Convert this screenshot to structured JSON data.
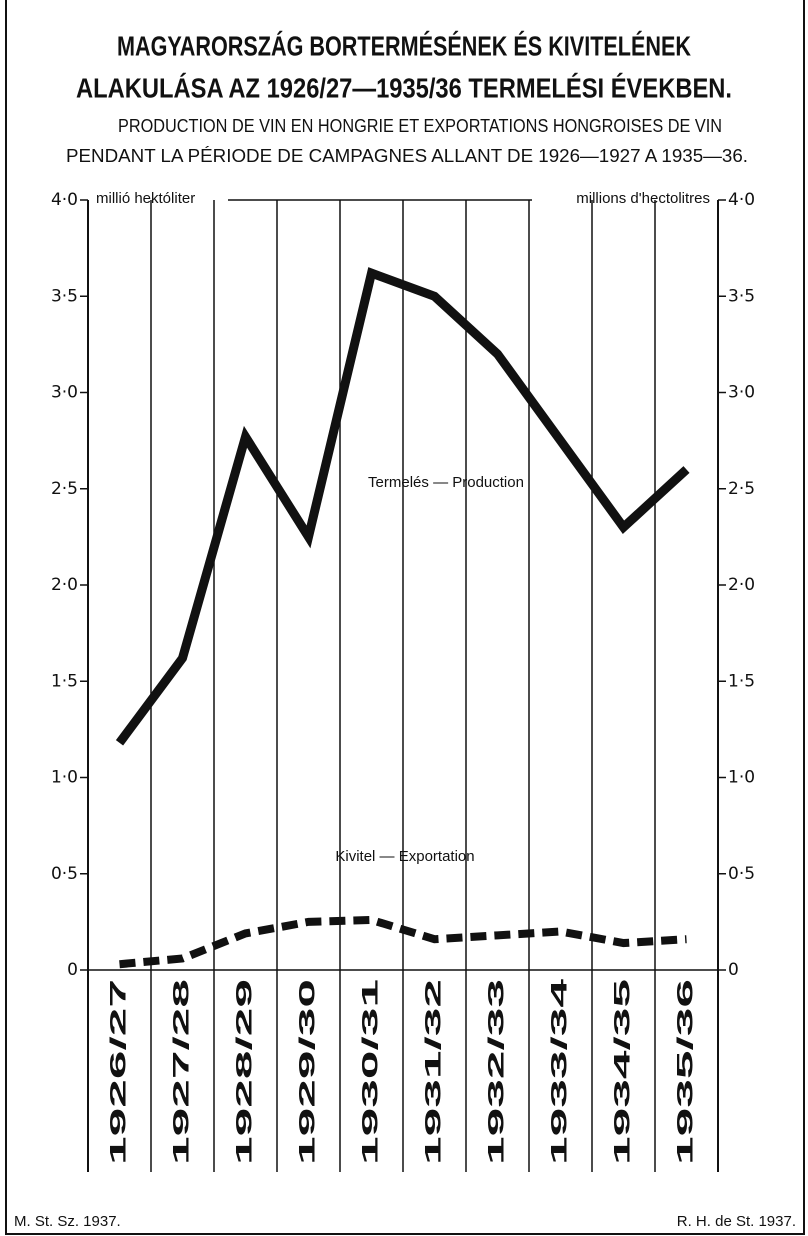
{
  "chart_data": {
    "type": "line",
    "title": [
      "MAGYARORSZÁG BORTERMÉSÉNEK ÉS KIVITELÉNEK",
      "ALAKULÁSA AZ 1926/27—1935/36 TERMELÉSI ÉVEKBEN."
    ],
    "subtitle": [
      "PRODUCTION DE VIN EN HONGRIE ET EXPORTATIONS HONGROISES DE VIN",
      "PENDANT LA PÉRIODE DE CAMPAGNES ALLANT DE 1926—1927 A 1935—36."
    ],
    "y_label": "millió hektóliter",
    "y2_label": "millions d'hectolitres",
    "categories": [
      "1926/27",
      "1927/28",
      "1928/29",
      "1929/30",
      "1930/31",
      "1931/32",
      "1932/33",
      "1933/34",
      "1934/35",
      "1935/36"
    ],
    "series": [
      {
        "name": "Termelés — Production",
        "color": "#111111",
        "style": "solid",
        "values": [
          1.18,
          1.62,
          2.77,
          2.25,
          3.62,
          3.5,
          3.2,
          2.75,
          2.3,
          2.6
        ]
      },
      {
        "name": "Kivitel — Exportation",
        "color": "#111111",
        "style": "dashed",
        "values": [
          0.03,
          0.06,
          0.19,
          0.25,
          0.26,
          0.16,
          0.18,
          0.2,
          0.14,
          0.16
        ]
      }
    ],
    "ylim": [
      0,
      4
    ],
    "yticks": [
      0,
      {
        "value": 0.5,
        "label": "0·5"
      },
      {
        "value": 1,
        "label": "1·0"
      },
      {
        "value": 1.5,
        "label": "1·5"
      },
      {
        "value": 2,
        "label": "2·0"
      },
      {
        "value": 2.5,
        "label": "2·5"
      },
      {
        "value": 3,
        "label": "3·0"
      },
      {
        "value": 3.5,
        "label": "3·5"
      },
      {
        "value": 4,
        "label": "4·0"
      }
    ],
    "footer_left": "M. St. Sz. 1937.",
    "footer_right": "R. H. de St. 1937."
  }
}
